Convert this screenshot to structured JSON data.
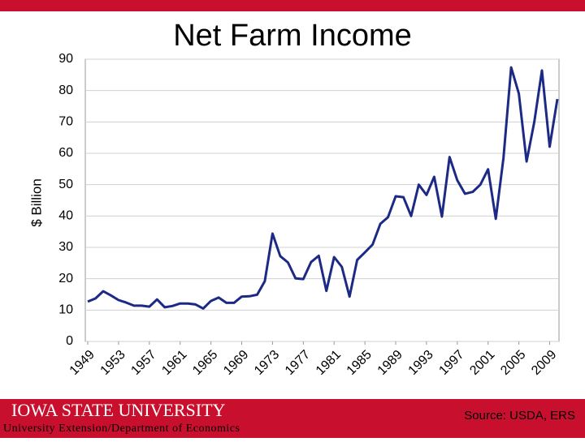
{
  "chart_data": {
    "type": "line",
    "title": "Net Farm Income",
    "y_label": "$ Billion",
    "x": [
      1949,
      1950,
      1951,
      1952,
      1953,
      1954,
      1955,
      1956,
      1957,
      1958,
      1959,
      1960,
      1961,
      1962,
      1963,
      1964,
      1965,
      1966,
      1967,
      1968,
      1969,
      1970,
      1971,
      1972,
      1973,
      1974,
      1975,
      1976,
      1977,
      1978,
      1979,
      1980,
      1981,
      1982,
      1983,
      1984,
      1985,
      1986,
      1987,
      1988,
      1989,
      1990,
      1991,
      1992,
      1993,
      1994,
      1995,
      1996,
      1997,
      1998,
      1999,
      2000,
      2001,
      2002,
      2003,
      2004,
      2005,
      2006,
      2007,
      2008,
      2009,
      2010
    ],
    "values": [
      12.7,
      13.7,
      16.0,
      14.7,
      13.2,
      12.4,
      11.4,
      11.4,
      11.1,
      13.4,
      10.9,
      11.3,
      12.1,
      12.1,
      11.8,
      10.5,
      12.9,
      14.0,
      12.3,
      12.3,
      14.3,
      14.4,
      14.9,
      19.2,
      34.4,
      27.2,
      25.2,
      20.1,
      19.9,
      25.3,
      27.3,
      16.1,
      26.9,
      23.8,
      14.3,
      26.0,
      28.4,
      30.9,
      37.5,
      39.6,
      46.3,
      46.0,
      40.0,
      50.0,
      46.7,
      52.5,
      39.8,
      58.8,
      51.4,
      47.1,
      47.7,
      50.0,
      54.9,
      39.1,
      58.6,
      87.4,
      79.0,
      57.4,
      70.0,
      86.4,
      62.1,
      77.3
    ],
    "color": "#1c2a85",
    "xlim": [
      1949,
      2010
    ],
    "xticks": [
      1949,
      1953,
      1957,
      1961,
      1965,
      1969,
      1973,
      1977,
      1981,
      1985,
      1989,
      1993,
      1997,
      2001,
      2005,
      2009
    ],
    "ylim": [
      0,
      90
    ],
    "yticks": [
      0,
      10,
      20,
      30,
      40,
      50,
      60,
      70,
      80,
      90
    ],
    "grid": true
  },
  "footer": {
    "logo": "Iowa State University",
    "department": "University Extension/Department of Economics",
    "source": "Source: USDA, ERS"
  }
}
